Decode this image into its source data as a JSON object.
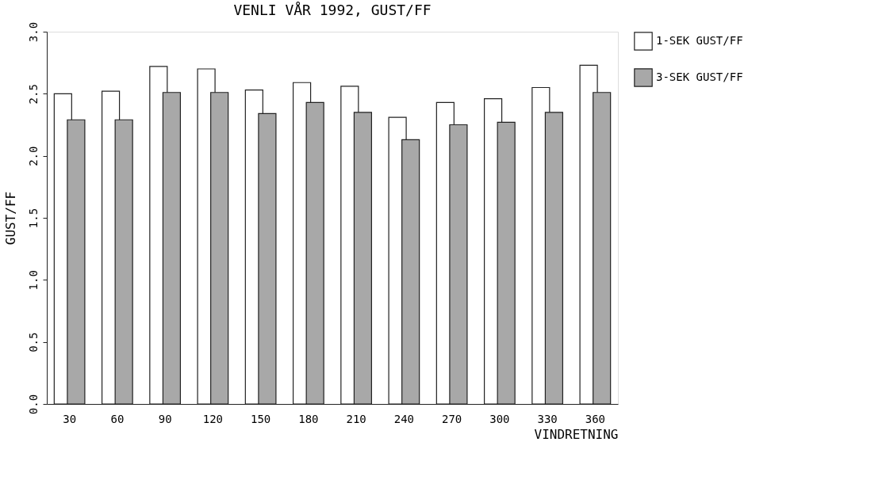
{
  "chart_data": {
    "type": "bar",
    "title": "VENLI VÅR 1992, GUST/FF",
    "xlabel": "VINDRETNING",
    "ylabel": "GUST/FF",
    "categories": [
      "30",
      "60",
      "90",
      "120",
      "150",
      "180",
      "210",
      "240",
      "270",
      "300",
      "330",
      "360"
    ],
    "series": [
      {
        "name": "1-SEK GUST/FF",
        "color": "#ffffff",
        "values": [
          2.5,
          2.52,
          2.72,
          2.7,
          2.53,
          2.59,
          2.56,
          2.31,
          2.43,
          2.46,
          2.55,
          2.73
        ]
      },
      {
        "name": "3-SEK GUST/FF",
        "color": "#a8a8a8",
        "values": [
          2.29,
          2.29,
          2.51,
          2.51,
          2.34,
          2.43,
          2.35,
          2.13,
          2.25,
          2.27,
          2.35,
          2.51
        ]
      }
    ],
    "ylim": [
      0,
      3
    ],
    "yticks": [
      {
        "value": 0,
        "label": "0.0"
      },
      {
        "value": 0.5,
        "label": "0.5"
      },
      {
        "value": 1,
        "label": "1.0"
      },
      {
        "value": 1.5,
        "label": "1.5"
      },
      {
        "value": 2,
        "label": "2.0"
      },
      {
        "value": 2.5,
        "label": "2.5"
      },
      {
        "value": 3,
        "label": "3.0"
      }
    ],
    "grid": false,
    "legend": "right"
  }
}
